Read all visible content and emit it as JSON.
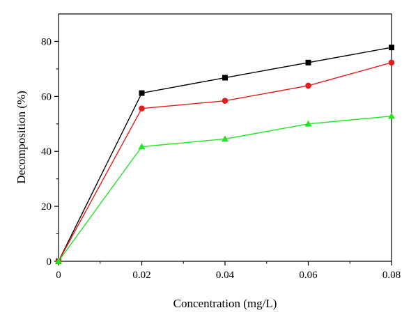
{
  "chart_data": {
    "type": "line",
    "title": "",
    "xlabel": "Concentration (mg/L)",
    "ylabel": "Decomposition (%)",
    "x": [
      0,
      0.02,
      0.04,
      0.06,
      0.08
    ],
    "x_tick_labels": [
      "0",
      "0.02",
      "0.04",
      "0.06",
      "0.08"
    ],
    "xlim": [
      0,
      0.08
    ],
    "y_ticks": [
      0,
      20,
      40,
      60,
      80
    ],
    "y_tick_labels": [
      "0",
      "20",
      "40",
      "60",
      "80"
    ],
    "ylim": [
      0,
      90
    ],
    "grid": false,
    "legend": "none",
    "series": [
      {
        "color": "#000000",
        "marker": "square",
        "values": [
          0,
          61.2,
          66.8,
          72.3,
          77.8
        ]
      },
      {
        "color": "#e41a1c",
        "marker": "circle",
        "values": [
          0,
          55.6,
          58.4,
          63.9,
          72.3
        ]
      },
      {
        "color": "#22e622",
        "marker": "triangle",
        "values": [
          0,
          41.7,
          44.5,
          50.0,
          52.8
        ]
      }
    ]
  }
}
